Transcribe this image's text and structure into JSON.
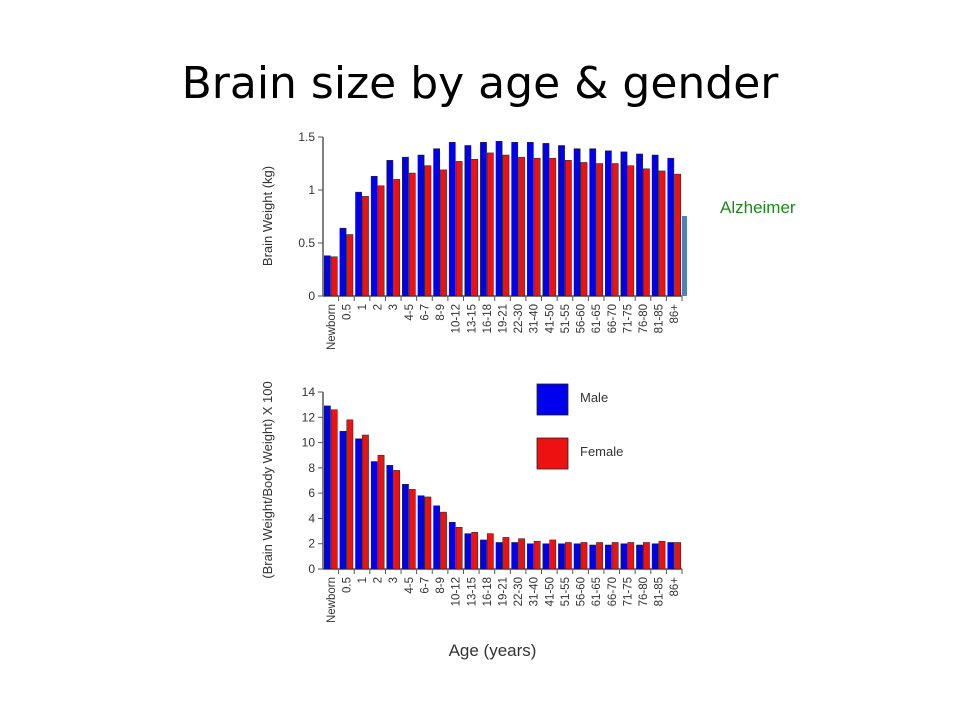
{
  "slide": {
    "title": "Brain size by age & gender",
    "annotation": "Alzheimer",
    "annotation_color": "#1a8a1a",
    "annotation_bar_color": "#4f81bd"
  },
  "colors": {
    "male": "#0000ee",
    "female": "#ee1111"
  },
  "chart_data": [
    {
      "type": "bar",
      "title": "",
      "xlabel": "",
      "ylabel": "Brain Weight (kg)",
      "ylim": [
        0,
        1.5
      ],
      "yticks": [
        "0",
        "0.5",
        "1",
        "1.5"
      ],
      "categories": [
        "Newborn",
        "0.5",
        "1",
        "2",
        "3",
        "4-5",
        "6-7",
        "8-9",
        "10-12",
        "13-15",
        "16-18",
        "19-21",
        "22-30",
        "31-40",
        "41-50",
        "51-55",
        "56-60",
        "61-65",
        "66-70",
        "71-75",
        "76-80",
        "81-85",
        "86+"
      ],
      "series": [
        {
          "name": "Male",
          "values": [
            0.38,
            0.64,
            0.98,
            1.13,
            1.28,
            1.31,
            1.33,
            1.39,
            1.45,
            1.42,
            1.45,
            1.46,
            1.45,
            1.45,
            1.44,
            1.42,
            1.39,
            1.39,
            1.37,
            1.36,
            1.34,
            1.33,
            1.3
          ]
        },
        {
          "name": "Female",
          "values": [
            0.37,
            0.58,
            0.94,
            1.04,
            1.1,
            1.16,
            1.23,
            1.19,
            1.27,
            1.29,
            1.35,
            1.33,
            1.31,
            1.3,
            1.3,
            1.28,
            1.26,
            1.25,
            1.25,
            1.23,
            1.2,
            1.18,
            1.15
          ]
        }
      ]
    },
    {
      "type": "bar",
      "title": "",
      "xlabel": "Age (years)",
      "ylabel": "(Brain Weight/Body Weight) X 100",
      "ylim": [
        0,
        14
      ],
      "yticks": [
        "0",
        "2",
        "4",
        "6",
        "8",
        "10",
        "12",
        "14"
      ],
      "legend": "top-right",
      "categories": [
        "Newborn",
        "0.5",
        "1",
        "2",
        "3",
        "4-5",
        "6-7",
        "8-9",
        "10-12",
        "13-15",
        "16-18",
        "19-21",
        "22-30",
        "31-40",
        "41-50",
        "51-55",
        "56-60",
        "61-65",
        "66-70",
        "71-75",
        "76-80",
        "81-85",
        "86+"
      ],
      "series": [
        {
          "name": "Male",
          "values": [
            12.9,
            10.9,
            10.3,
            8.5,
            8.2,
            6.7,
            5.8,
            5.0,
            3.7,
            2.8,
            2.3,
            2.1,
            2.1,
            2.0,
            2.0,
            2.0,
            2.0,
            1.9,
            1.9,
            2.0,
            1.9,
            2.0,
            2.1
          ]
        },
        {
          "name": "Female",
          "values": [
            12.6,
            11.8,
            10.6,
            9.0,
            7.8,
            6.3,
            5.7,
            4.5,
            3.3,
            2.9,
            2.8,
            2.5,
            2.4,
            2.2,
            2.3,
            2.1,
            2.1,
            2.1,
            2.1,
            2.1,
            2.1,
            2.2,
            2.1
          ]
        }
      ]
    }
  ]
}
